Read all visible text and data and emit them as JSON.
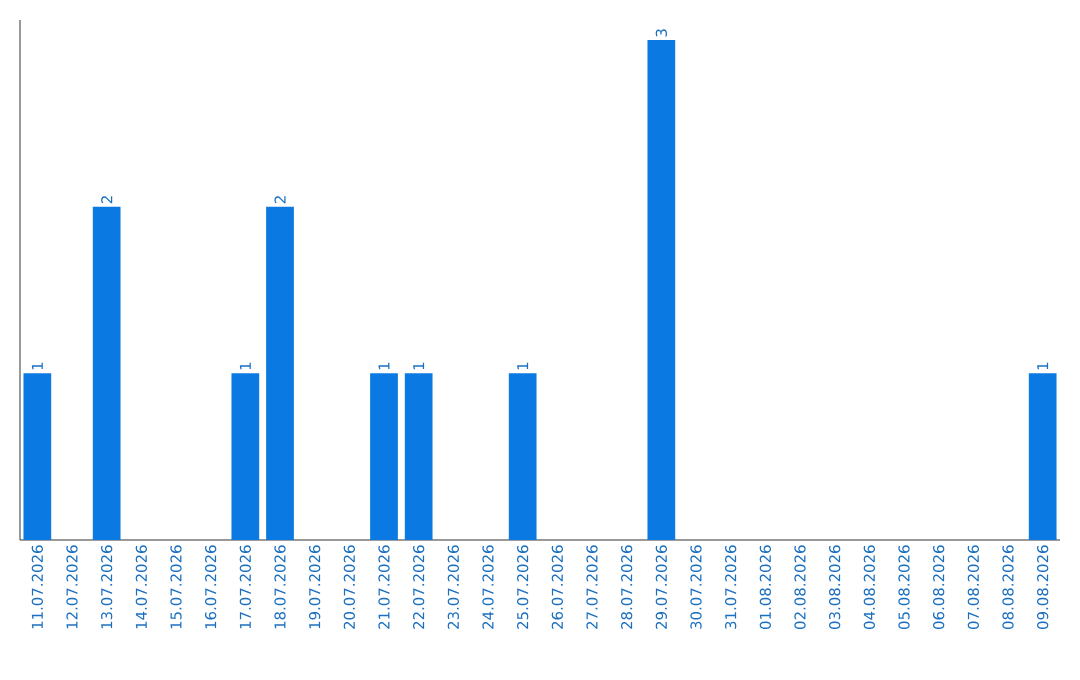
{
  "chart_data": {
    "type": "bar",
    "color": "#0a7ae2",
    "categories": [
      "11.07.2026",
      "12.07.2026",
      "13.07.2026",
      "14.07.2026",
      "15.07.2026",
      "16.07.2026",
      "17.07.2026",
      "18.07.2026",
      "19.07.2026",
      "20.07.2026",
      "21.07.2026",
      "22.07.2026",
      "23.07.2026",
      "24.07.2026",
      "25.07.2026",
      "26.07.2026",
      "27.07.2026",
      "28.07.2026",
      "29.07.2026",
      "30.07.2026",
      "31.07.2026",
      "01.08.2026",
      "02.08.2026",
      "03.08.2026",
      "04.08.2026",
      "05.08.2026",
      "06.08.2026",
      "07.08.2026",
      "08.08.2026",
      "09.08.2026"
    ],
    "values": [
      1,
      0,
      2,
      0,
      0,
      0,
      1,
      2,
      0,
      0,
      1,
      1,
      0,
      0,
      1,
      0,
      0,
      0,
      3,
      0,
      0,
      0,
      0,
      0,
      0,
      0,
      0,
      0,
      0,
      1
    ],
    "value_labels": [
      "1",
      null,
      "2",
      null,
      null,
      null,
      "1",
      "2",
      null,
      null,
      "1",
      "1",
      null,
      null,
      "1",
      null,
      null,
      null,
      "3",
      null,
      null,
      null,
      null,
      null,
      null,
      null,
      null,
      null,
      null,
      "1"
    ],
    "grid": false
  }
}
